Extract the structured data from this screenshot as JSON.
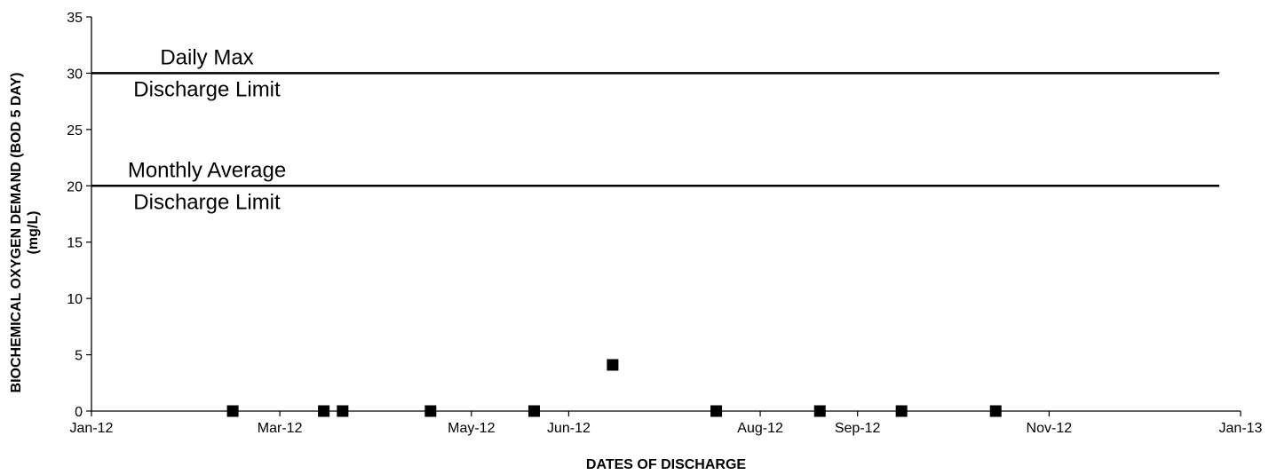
{
  "chart_data": {
    "type": "scatter",
    "title": "",
    "xlabel": "DATES OF DISCHARGE",
    "ylabel_lines": [
      "BIOCHEMICAL OXYGEN DEMAND (BOD 5 DAY)",
      "(mg/L)"
    ],
    "x_scale": "date",
    "xlim": [
      "2012-01-01",
      "2013-01-01"
    ],
    "x_tick_values": [
      "2012-01-01",
      "2012-03-01",
      "2012-05-01",
      "2012-06-01",
      "2012-08-01",
      "2012-09-01",
      "2012-11-01",
      "2013-01-01"
    ],
    "x_tick_labels": [
      "Jan-12",
      "Mar-12",
      "May-12",
      "Jun-12",
      "Aug-12",
      "Sep-12",
      "Nov-12",
      "Jan-13"
    ],
    "ylim": [
      0,
      35
    ],
    "y_ticks": [
      0,
      5,
      10,
      15,
      20,
      25,
      30,
      35
    ],
    "grid": false,
    "legend": "none",
    "series": [
      {
        "marker": "square",
        "color": "#000000",
        "points": [
          {
            "x": "2012-02-15",
            "y": 0
          },
          {
            "x": "2012-03-15",
            "y": 0
          },
          {
            "x": "2012-03-21",
            "y": 0
          },
          {
            "x": "2012-04-18",
            "y": 0
          },
          {
            "x": "2012-05-21",
            "y": 0
          },
          {
            "x": "2012-06-15",
            "y": 4.1
          },
          {
            "x": "2012-07-18",
            "y": 0
          },
          {
            "x": "2012-08-20",
            "y": 0
          },
          {
            "x": "2012-09-15",
            "y": 0
          },
          {
            "x": "2012-10-15",
            "y": 0
          }
        ]
      }
    ],
    "limit_lines": [
      {
        "y": 30,
        "style": "solid",
        "label_top": "Daily Max",
        "label_bottom": "Discharge Limit"
      },
      {
        "y": 20,
        "style": "solid",
        "label_top": "Monthly Average",
        "label_bottom": "Discharge Limit"
      }
    ]
  }
}
